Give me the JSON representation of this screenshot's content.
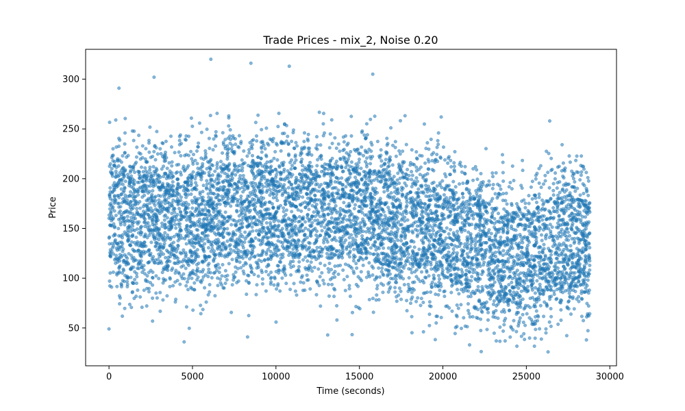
{
  "chart_data": {
    "type": "scatter",
    "title": "Trade Prices - mix_2, Noise 0.20",
    "xlabel": "Time (seconds)",
    "ylabel": "Price",
    "xlim": [
      -1400,
      30400
    ],
    "ylim": [
      12,
      330
    ],
    "xticks": [
      0,
      5000,
      10000,
      15000,
      20000,
      25000,
      30000
    ],
    "yticks": [
      50,
      100,
      150,
      200,
      250,
      300
    ],
    "grid": false,
    "legend": "none",
    "point_color": "#1f77b4",
    "point_alpha": 0.55,
    "series": [
      {
        "x_range": [
          0,
          28800
        ],
        "trend": [
          {
            "x": 0,
            "y": 163
          },
          {
            "x": 2000,
            "y": 161
          },
          {
            "x": 4000,
            "y": 160
          },
          {
            "x": 5000,
            "y": 163
          },
          {
            "x": 6000,
            "y": 168
          },
          {
            "x": 8000,
            "y": 170
          },
          {
            "x": 10000,
            "y": 168
          },
          {
            "x": 12000,
            "y": 167
          },
          {
            "x": 14000,
            "y": 166
          },
          {
            "x": 15500,
            "y": 165
          },
          {
            "x": 17000,
            "y": 157
          },
          {
            "x": 19000,
            "y": 152
          },
          {
            "x": 21000,
            "y": 140
          },
          {
            "x": 22500,
            "y": 131
          },
          {
            "x": 23500,
            "y": 122
          },
          {
            "x": 24500,
            "y": 120
          },
          {
            "x": 25500,
            "y": 124
          },
          {
            "x": 26500,
            "y": 135
          },
          {
            "x": 27500,
            "y": 133
          },
          {
            "x": 28800,
            "y": 132
          }
        ],
        "noise_sd": 30,
        "outliers": [
          {
            "x": 6100,
            "y": 320
          },
          {
            "x": 8500,
            "y": 316
          },
          {
            "x": 10800,
            "y": 313
          },
          {
            "x": 2700,
            "y": 302
          },
          {
            "x": 15800,
            "y": 305
          },
          {
            "x": 600,
            "y": 291
          },
          {
            "x": 26400,
            "y": 258
          },
          {
            "x": 21600,
            "y": 33
          },
          {
            "x": 26300,
            "y": 26
          },
          {
            "x": 4500,
            "y": 36
          },
          {
            "x": 28600,
            "y": 38
          },
          {
            "x": 8300,
            "y": 41
          },
          {
            "x": 23200,
            "y": 37
          },
          {
            "x": 19900,
            "y": 262
          },
          {
            "x": 13100,
            "y": 43
          },
          {
            "x": 0,
            "y": 49
          }
        ]
      }
    ]
  }
}
